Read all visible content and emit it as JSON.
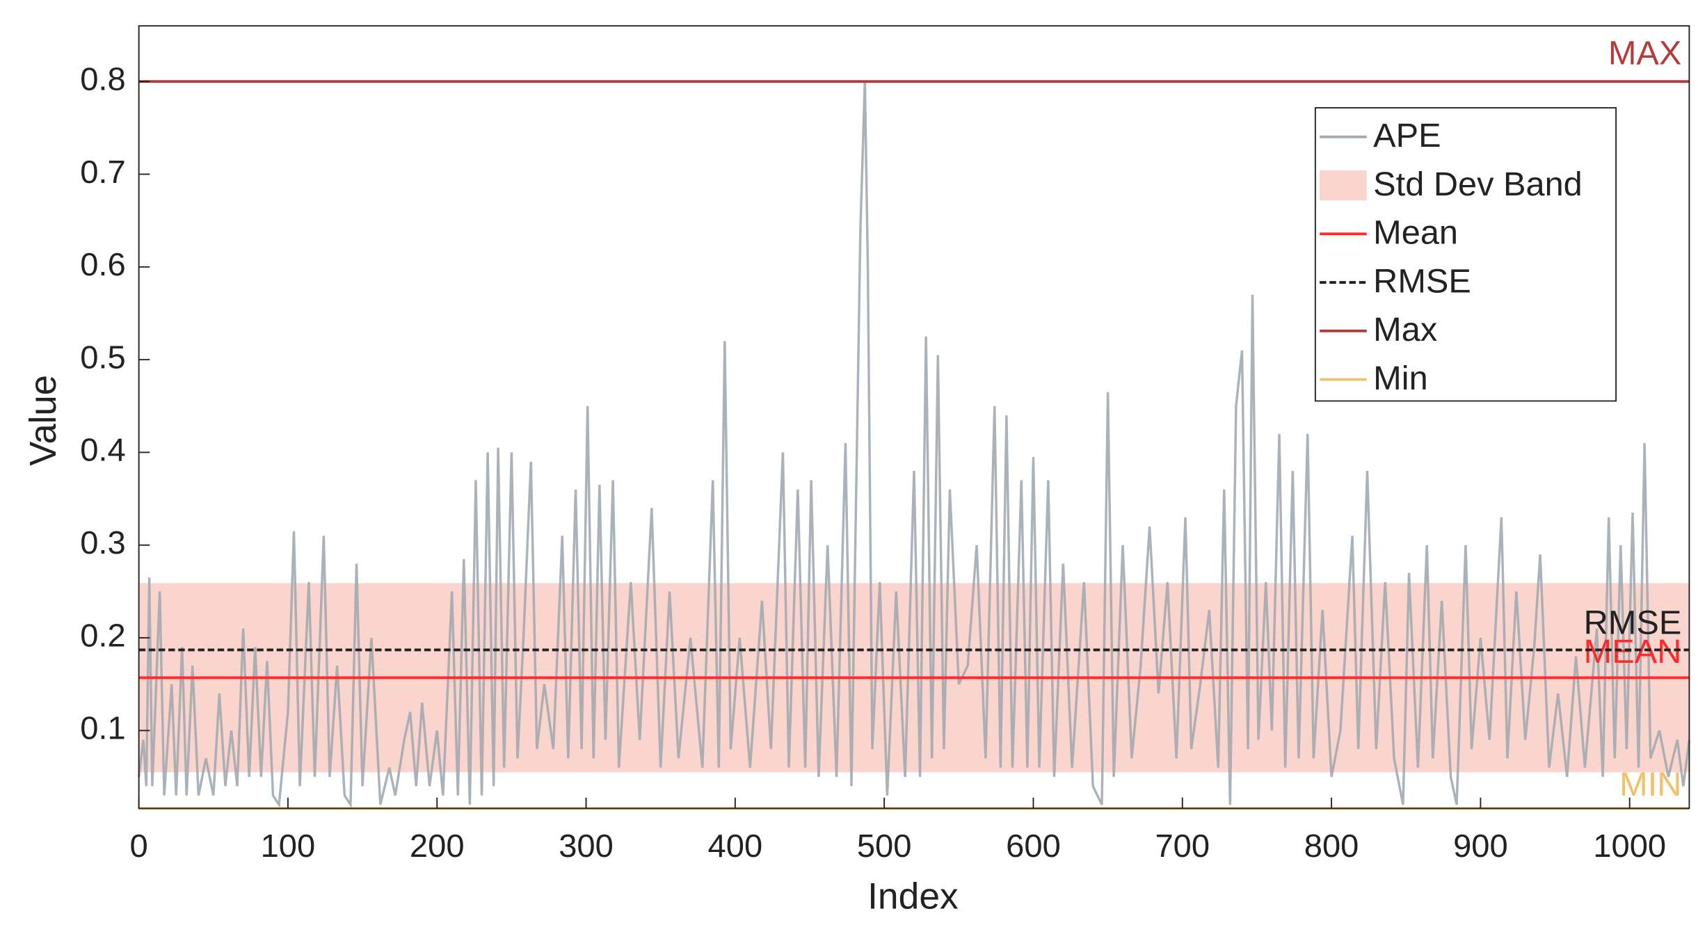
{
  "chart_data": {
    "type": "line",
    "xlabel": "Index",
    "ylabel": "Value",
    "xlim": [
      0,
      1040
    ],
    "ylim": [
      0.016,
      0.86
    ],
    "xticks": [
      0,
      100,
      200,
      300,
      400,
      500,
      600,
      700,
      800,
      900,
      1000
    ],
    "yticks": [
      0.1,
      0.2,
      0.3,
      0.4,
      0.5,
      0.6,
      0.7,
      0.8
    ],
    "grid": false,
    "legend": "upper right",
    "series": [
      {
        "name": "APE",
        "color": "#a3aab1",
        "x": [
          0,
          3,
          5,
          7,
          9,
          14,
          17,
          22,
          25,
          29,
          32,
          36,
          40,
          45,
          50,
          54,
          58,
          62,
          66,
          70,
          74,
          78,
          82,
          86,
          90,
          94,
          100,
          104,
          108,
          114,
          118,
          124,
          128,
          133,
          138,
          142,
          146,
          150,
          156,
          162,
          168,
          172,
          178,
          182,
          186,
          190,
          195,
          200,
          204,
          210,
          214,
          218,
          222,
          226,
          230,
          234,
          238,
          241,
          245,
          250,
          254,
          258,
          263,
          267,
          272,
          278,
          284,
          288,
          293,
          297,
          301,
          305,
          309,
          313,
          318,
          322,
          330,
          336,
          344,
          350,
          356,
          362,
          370,
          378,
          385,
          389,
          393,
          397,
          403,
          410,
          418,
          424,
          432,
          436,
          442,
          447,
          451,
          456,
          462,
          468,
          474,
          478,
          484,
          487,
          489,
          492,
          497,
          502,
          508,
          514,
          520,
          524,
          528,
          532,
          536,
          540,
          544,
          550,
          556,
          562,
          568,
          574,
          578,
          582,
          586,
          592,
          596,
          600,
          604,
          610,
          614,
          620,
          626,
          634,
          640,
          646,
          650,
          654,
          660,
          666,
          672,
          678,
          684,
          690,
          696,
          702,
          706,
          712,
          718,
          724,
          728,
          732,
          736,
          740,
          744,
          747,
          751,
          756,
          760,
          765,
          769,
          774,
          778,
          784,
          788,
          794,
          800,
          806,
          814,
          818,
          824,
          830,
          836,
          842,
          848,
          852,
          858,
          864,
          868,
          874,
          880,
          884,
          890,
          894,
          900,
          906,
          914,
          918,
          924,
          930,
          936,
          940,
          946,
          952,
          958,
          964,
          970,
          978,
          982,
          986,
          990,
          994,
          998,
          1002,
          1006,
          1010,
          1014,
          1020,
          1026,
          1032,
          1036,
          1040
        ],
        "values": [
          0.05,
          0.09,
          0.04,
          0.265,
          0.04,
          0.25,
          0.03,
          0.15,
          0.03,
          0.19,
          0.03,
          0.17,
          0.03,
          0.07,
          0.03,
          0.14,
          0.04,
          0.1,
          0.04,
          0.21,
          0.05,
          0.19,
          0.05,
          0.175,
          0.03,
          0.02,
          0.12,
          0.315,
          0.04,
          0.26,
          0.05,
          0.31,
          0.05,
          0.17,
          0.03,
          0.02,
          0.28,
          0.04,
          0.2,
          0.02,
          0.06,
          0.03,
          0.09,
          0.12,
          0.04,
          0.13,
          0.04,
          0.1,
          0.03,
          0.25,
          0.03,
          0.285,
          0.02,
          0.37,
          0.03,
          0.4,
          0.04,
          0.405,
          0.06,
          0.4,
          0.07,
          0.2,
          0.39,
          0.08,
          0.15,
          0.08,
          0.31,
          0.07,
          0.36,
          0.08,
          0.45,
          0.07,
          0.365,
          0.09,
          0.37,
          0.06,
          0.26,
          0.09,
          0.34,
          0.06,
          0.25,
          0.07,
          0.2,
          0.06,
          0.37,
          0.06,
          0.52,
          0.08,
          0.2,
          0.06,
          0.24,
          0.08,
          0.4,
          0.06,
          0.36,
          0.06,
          0.37,
          0.05,
          0.3,
          0.05,
          0.41,
          0.04,
          0.64,
          0.8,
          0.6,
          0.08,
          0.26,
          0.03,
          0.25,
          0.05,
          0.38,
          0.05,
          0.525,
          0.07,
          0.505,
          0.08,
          0.36,
          0.15,
          0.17,
          0.3,
          0.07,
          0.45,
          0.06,
          0.44,
          0.06,
          0.37,
          0.06,
          0.395,
          0.06,
          0.37,
          0.05,
          0.28,
          0.06,
          0.26,
          0.04,
          0.02,
          0.465,
          0.05,
          0.3,
          0.07,
          0.17,
          0.32,
          0.14,
          0.26,
          0.07,
          0.33,
          0.08,
          0.15,
          0.23,
          0.06,
          0.36,
          0.02,
          0.45,
          0.51,
          0.08,
          0.57,
          0.09,
          0.26,
          0.1,
          0.42,
          0.06,
          0.38,
          0.07,
          0.42,
          0.07,
          0.23,
          0.05,
          0.1,
          0.31,
          0.08,
          0.38,
          0.08,
          0.26,
          0.07,
          0.02,
          0.27,
          0.06,
          0.3,
          0.07,
          0.24,
          0.05,
          0.02,
          0.3,
          0.08,
          0.2,
          0.09,
          0.33,
          0.07,
          0.25,
          0.09,
          0.19,
          0.29,
          0.06,
          0.14,
          0.05,
          0.18,
          0.06,
          0.21,
          0.05,
          0.33,
          0.07,
          0.3,
          0.08,
          0.335,
          0.06,
          0.41,
          0.07,
          0.1,
          0.05,
          0.09,
          0.04,
          0.09
        ]
      }
    ],
    "band": {
      "name": "Std Dev Band",
      "color": "#f7b9ae",
      "low": 0.055,
      "high": 0.259
    },
    "hlines": [
      {
        "name": "Mean",
        "value": 0.157,
        "color": "#ff2b2b",
        "label": "MEAN",
        "dash": false
      },
      {
        "name": "RMSE",
        "value": 0.187,
        "color": "#222222",
        "label": "RMSE",
        "dash": true
      },
      {
        "name": "Max",
        "value": 0.8,
        "color": "#b53a3a",
        "label": "MAX",
        "dash": false
      },
      {
        "name": "Min",
        "value": 0.016,
        "color": "#f2c069",
        "label": "MIN",
        "dash": false
      }
    ]
  }
}
